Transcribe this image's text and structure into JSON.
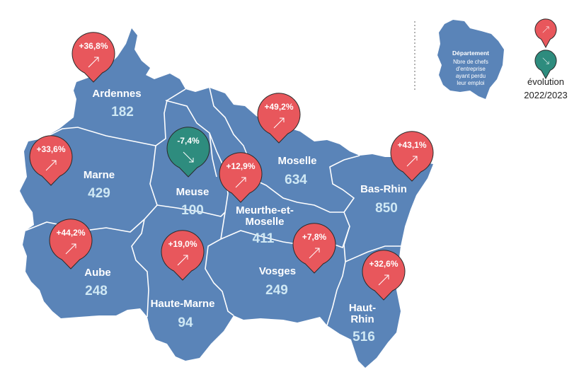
{
  "colors": {
    "region_fill": "#5a84b8",
    "border": "#ffffff",
    "dept_name": "#ffffff",
    "dept_value": "#cfe8f4",
    "increase": "#e8575c",
    "decrease": "#2e8c7e",
    "outline": "#2a2a2a"
  },
  "departments": [
    {
      "name": "Ardennes",
      "value": "182",
      "evolution": "+36,8%",
      "trend": "up"
    },
    {
      "name": "Marne",
      "value": "429",
      "evolution": "+33,6%",
      "trend": "up"
    },
    {
      "name": "Meuse",
      "value": "100",
      "evolution": "-7,4%",
      "trend": "down"
    },
    {
      "name": "Moselle",
      "value": "634",
      "evolution": "+49,2%",
      "trend": "up"
    },
    {
      "name": "Bas-Rhin",
      "value": "850",
      "evolution": "+43,1%",
      "trend": "up"
    },
    {
      "name_lines": [
        "Meurthe-et-",
        "Moselle"
      ],
      "value": "411",
      "evolution": "+12,9%",
      "trend": "up"
    },
    {
      "name": "Aube",
      "value": "248",
      "evolution": "+44,2%",
      "trend": "up"
    },
    {
      "name": "Haute-Marne",
      "value": "94",
      "evolution": "+19,0%",
      "trend": "up"
    },
    {
      "name": "Vosges",
      "value": "249",
      "evolution": "+7,8%",
      "trend": "up"
    },
    {
      "name_lines": [
        "Haut-",
        "Rhin"
      ],
      "value": "516",
      "evolution": "+32,6%",
      "trend": "up"
    }
  ],
  "legend": {
    "title": "Département",
    "lines": [
      "Nbre de chefs",
      "d'entreprise",
      "ayant perdu",
      "leur emploi"
    ],
    "evolution_label": "évolution",
    "period": "2022/2023",
    "up_icon": "arrow-up-right-icon",
    "down_icon": "arrow-down-right-icon"
  }
}
